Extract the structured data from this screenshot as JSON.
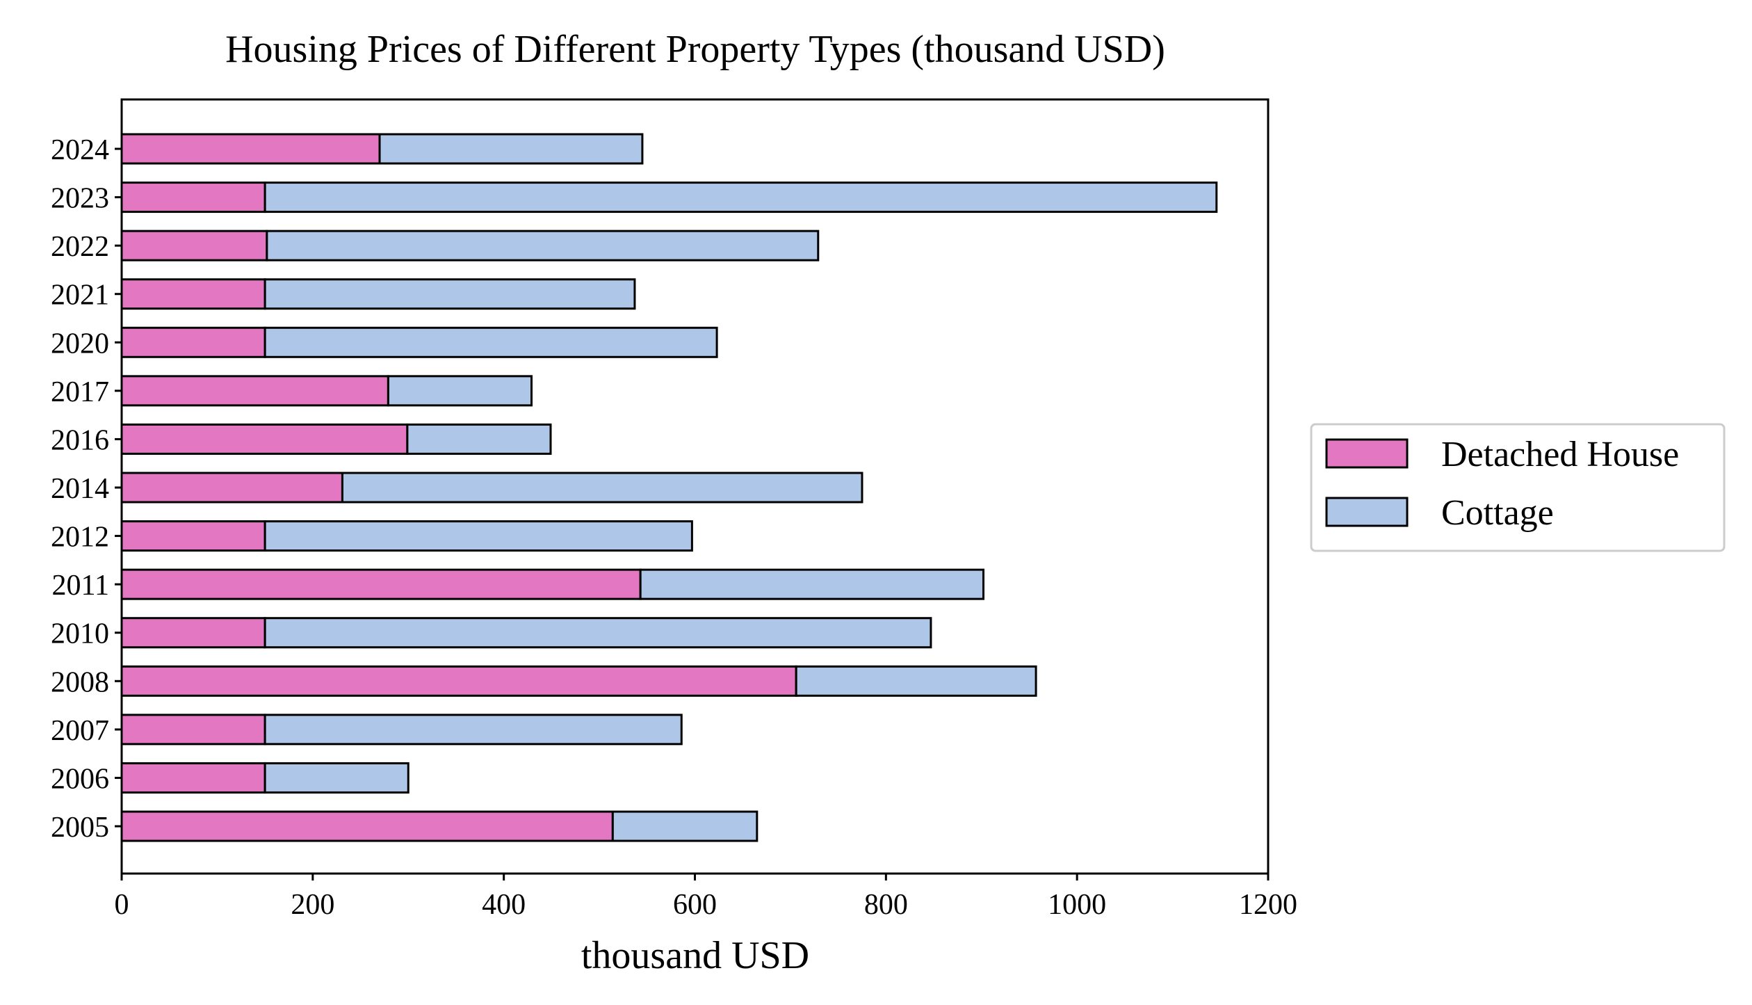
{
  "chart_data": {
    "type": "bar",
    "orientation": "horizontal",
    "stacked": true,
    "title": "Housing Prices of Different Property Types (thousand USD)",
    "xlabel": "thousand USD",
    "ylabel": "",
    "xlim": [
      0,
      1200
    ],
    "xticks": [
      0,
      200,
      400,
      600,
      800,
      1000,
      1200
    ],
    "grid": false,
    "legend_position": "right",
    "categories": [
      "2005",
      "2006",
      "2007",
      "2008",
      "2010",
      "2011",
      "2012",
      "2014",
      "2016",
      "2017",
      "2020",
      "2021",
      "2022",
      "2023",
      "2024"
    ],
    "series": [
      {
        "name": "Detached House",
        "color": "#e377c2",
        "values": [
          514,
          150,
          150,
          706,
          150,
          543,
          150,
          231,
          299,
          279,
          150,
          150,
          152,
          150,
          270
        ]
      },
      {
        "name": "Cottage",
        "color": "#aec7e8",
        "values": [
          151,
          150,
          436,
          251,
          697,
          359,
          447,
          544,
          150,
          150,
          473,
          387,
          577,
          996,
          275
        ]
      }
    ]
  }
}
